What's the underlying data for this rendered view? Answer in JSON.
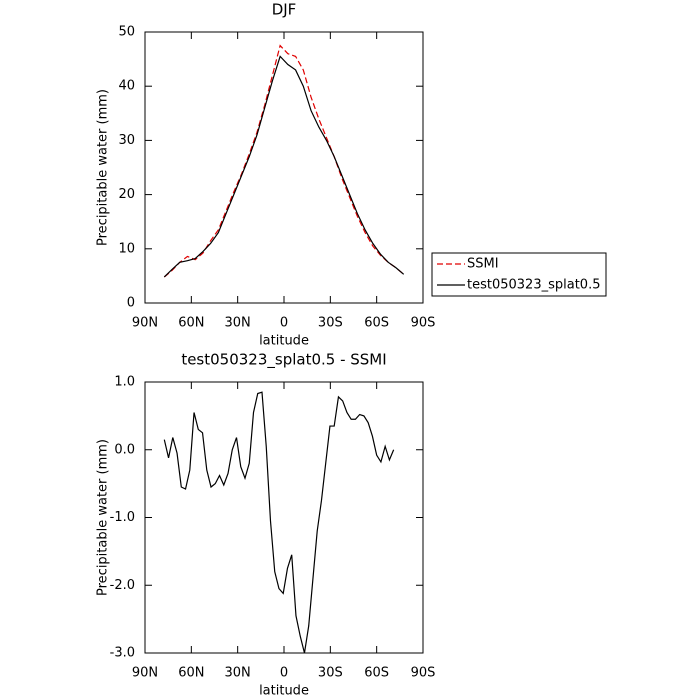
{
  "chart_data": [
    {
      "type": "line",
      "title": "DJF",
      "xlabel": "latitude",
      "ylabel": "Precipitable water (mm)",
      "x": [
        77.5,
        72.5,
        67.5,
        62.5,
        57.5,
        52.5,
        47.5,
        42.5,
        37.5,
        32.5,
        27.5,
        22.5,
        17.5,
        12.5,
        7.5,
        2.5,
        -2.5,
        -7.5,
        -12.5,
        -17.5,
        -22.5,
        -27.5,
        -32.5,
        -37.5,
        -42.5,
        -47.5,
        -52.5,
        -57.5,
        -62.5,
        -67.5,
        -72.5,
        -77.5
      ],
      "series": [
        {
          "name": "SSMI",
          "color": "#e00000",
          "style": "dashed",
          "values": [
            4.8,
            6,
            7.5,
            8.6,
            8,
            9.2,
            11.5,
            13.5,
            17,
            20.5,
            23.8,
            27.5,
            31.5,
            36.5,
            42,
            47.5,
            46,
            45.5,
            43,
            38,
            34,
            30.5,
            27,
            23,
            19.5,
            16,
            13,
            10.5,
            8.8,
            7.5,
            6.5,
            5.3
          ]
        },
        {
          "name": "test050323_splat0.5",
          "color": "#000000",
          "style": "solid",
          "values": [
            4.8,
            6.2,
            7.5,
            7.8,
            8.2,
            9.5,
            11,
            13,
            16.5,
            20,
            23.5,
            27,
            31,
            36,
            41,
            45.5,
            44,
            43,
            40,
            35.5,
            32.5,
            30,
            27,
            23.5,
            20,
            16.5,
            13.5,
            11,
            9,
            7.5,
            6.5,
            5.3
          ]
        }
      ],
      "xlim": [
        90,
        -90
      ],
      "xticks": [
        {
          "value": 90,
          "label": "90N"
        },
        {
          "value": 60,
          "label": "60N"
        },
        {
          "value": 30,
          "label": "30N"
        },
        0,
        {
          "value": -30,
          "label": "30S"
        },
        {
          "value": -60,
          "label": "60S"
        },
        {
          "value": -90,
          "label": "90S"
        }
      ],
      "ylim": [
        0,
        50
      ],
      "yticks": [
        0,
        10,
        20,
        30,
        40,
        50
      ],
      "legend": "right"
    },
    {
      "type": "line",
      "title": "test050323_splat0.5 - SSMI",
      "xlabel": "latitude",
      "ylabel": "Precipitable water (mm)",
      "x": [
        77.5,
        74.75,
        72,
        69.25,
        66.5,
        63.75,
        61,
        58.25,
        55.5,
        52.75,
        50,
        47.25,
        44.5,
        41.75,
        39,
        36.25,
        33.5,
        30.75,
        28,
        25.25,
        22.5,
        19.75,
        17,
        14.25,
        11.5,
        8.75,
        6,
        3.25,
        0.5,
        -2.25,
        -5,
        -7.75,
        -10.5,
        -13.25,
        -16,
        -18.75,
        -21.5,
        -24.25,
        -27,
        -29.75,
        -32.5,
        -35.25,
        -38,
        -40.75,
        -43.5,
        -46.25,
        -49,
        -51.75,
        -54.5,
        -57.25,
        -60,
        -62.75,
        -65.5,
        -68.25,
        -71
      ],
      "values": [
        0.15,
        -0.12,
        0.18,
        -0.05,
        -0.55,
        -0.58,
        -0.3,
        0.55,
        0.3,
        0.25,
        -0.3,
        -0.55,
        -0.5,
        -0.38,
        -0.52,
        -0.35,
        0.0,
        0.18,
        -0.25,
        -0.42,
        -0.2,
        0.55,
        0.83,
        0.85,
        0.05,
        -1.05,
        -1.8,
        -2.05,
        -2.12,
        -1.75,
        -1.55,
        -2.45,
        -2.75,
        -3.0,
        -2.6,
        -1.9,
        -1.2,
        -0.75,
        -0.2,
        0.35,
        0.35,
        0.78,
        0.72,
        0.55,
        0.45,
        0.45,
        0.52,
        0.5,
        0.4,
        0.2,
        -0.08,
        -0.18,
        0.05,
        -0.15,
        0.0
      ],
      "color": "#000000",
      "xlim": [
        90,
        -90
      ],
      "xticks": [
        {
          "value": 90,
          "label": "90N"
        },
        {
          "value": 60,
          "label": "60N"
        },
        {
          "value": 30,
          "label": "30N"
        },
        0,
        {
          "value": -30,
          "label": "30S"
        },
        {
          "value": -60,
          "label": "60S"
        },
        {
          "value": -90,
          "label": "90S"
        }
      ],
      "ylim": [
        -3,
        1
      ],
      "yticks": [
        {
          "value": -3,
          "label": "-3.0"
        },
        {
          "value": -2,
          "label": "-2.0"
        },
        {
          "value": -1,
          "label": "-1.0"
        },
        {
          "value": 0,
          "label": "0.0"
        },
        {
          "value": 1,
          "label": "1.0"
        }
      ]
    }
  ]
}
